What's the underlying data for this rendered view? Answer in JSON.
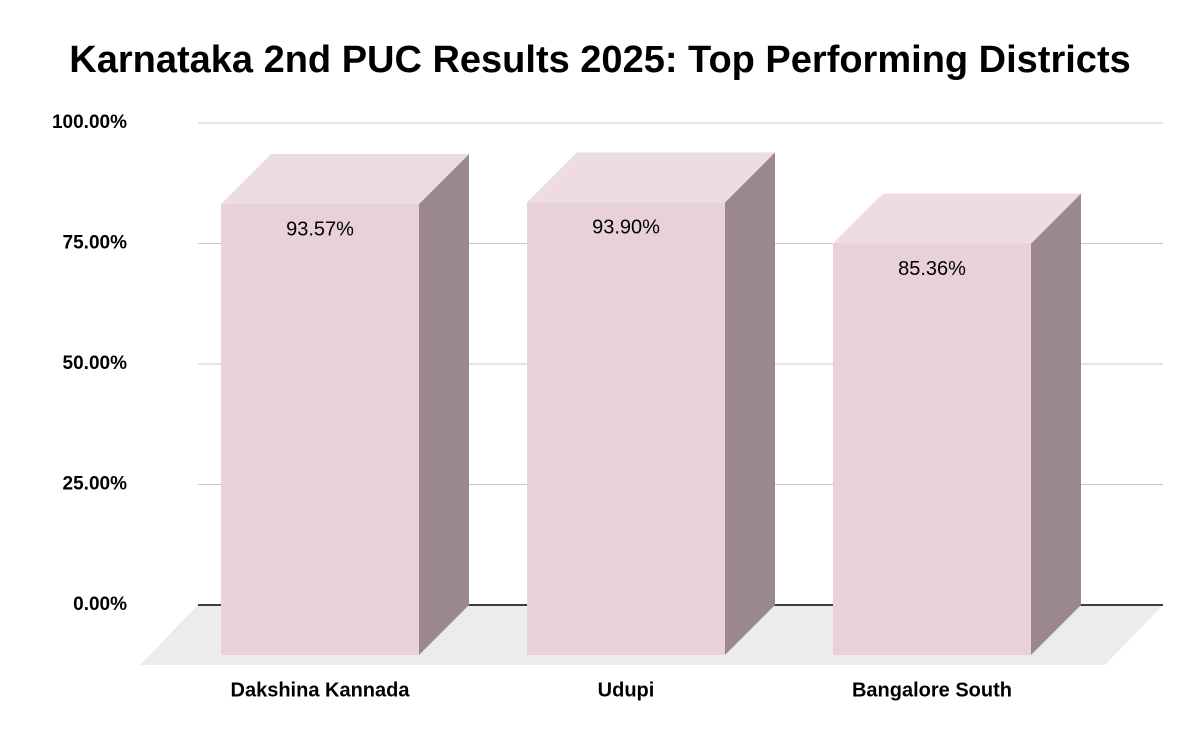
{
  "chart_data": {
    "type": "bar3d",
    "title": "Karnataka 2nd PUC Results 2025: Top Performing Districts",
    "categories": [
      "Dakshina Kannada",
      "Udupi",
      "Bangalore South"
    ],
    "values": [
      93.57,
      93.9,
      85.36
    ],
    "value_labels": [
      "93.57%",
      "93.90%",
      "85.36%"
    ],
    "color": "#e8d1db",
    "ylim": [
      0,
      100
    ],
    "yticks": [
      {
        "value": 0,
        "label": "0.00%"
      },
      {
        "value": 25,
        "label": "25.00%"
      },
      {
        "value": 50,
        "label": "50.00%"
      },
      {
        "value": 75,
        "label": "75.00%"
      },
      {
        "value": 100,
        "label": "100.00%"
      }
    ],
    "grid": true
  }
}
